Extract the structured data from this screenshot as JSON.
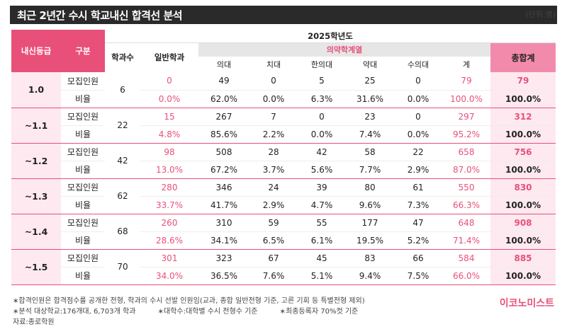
{
  "title": "최근 2년간 수시 학교내신 합격선 분석",
  "unit": "(단위:명)",
  "header": {
    "grade": "내신등급",
    "gubun": "구분",
    "year": "2025학년도",
    "dept_count": "학과수",
    "general": "일반학과",
    "medical_group": "의약학계열",
    "medical_cols": [
      "의대",
      "치대",
      "한의대",
      "약대",
      "수의대",
      "계"
    ],
    "total": "총합계"
  },
  "rows": [
    {
      "grade": "1.0",
      "dept_count": "6",
      "recruit": {
        "label": "모집인원",
        "general": "0",
        "values": [
          "49",
          "0",
          "5",
          "25",
          "0"
        ],
        "sum": "79",
        "total": "79"
      },
      "ratio": {
        "label": "비율",
        "general": "0.0%",
        "values": [
          "62.0%",
          "0.0%",
          "6.3%",
          "31.6%",
          "0.0%"
        ],
        "sum": "100.0%",
        "total": "100.0%"
      }
    },
    {
      "grade": "~1.1",
      "dept_count": "22",
      "recruit": {
        "label": "모집인원",
        "general": "15",
        "values": [
          "267",
          "7",
          "0",
          "23",
          "0"
        ],
        "sum": "297",
        "total": "312"
      },
      "ratio": {
        "label": "비율",
        "general": "4.8%",
        "values": [
          "85.6%",
          "2.2%",
          "0.0%",
          "7.4%",
          "0.0%"
        ],
        "sum": "95.2%",
        "total": "100.0%"
      }
    },
    {
      "grade": "~1.2",
      "dept_count": "42",
      "recruit": {
        "label": "모집인원",
        "general": "98",
        "values": [
          "508",
          "28",
          "42",
          "58",
          "22"
        ],
        "sum": "658",
        "total": "756"
      },
      "ratio": {
        "label": "비율",
        "general": "13.0%",
        "values": [
          "67.2%",
          "3.7%",
          "5.6%",
          "7.7%",
          "2.9%"
        ],
        "sum": "87.0%",
        "total": "100.0%"
      }
    },
    {
      "grade": "~1.3",
      "dept_count": "62",
      "recruit": {
        "label": "모집인원",
        "general": "280",
        "values": [
          "346",
          "24",
          "39",
          "80",
          "61"
        ],
        "sum": "550",
        "total": "830"
      },
      "ratio": {
        "label": "비율",
        "general": "33.7%",
        "values": [
          "41.7%",
          "2.9%",
          "4.7%",
          "9.6%",
          "7.3%"
        ],
        "sum": "66.3%",
        "total": "100.0%"
      }
    },
    {
      "grade": "~1.4",
      "dept_count": "68",
      "recruit": {
        "label": "모집인원",
        "general": "260",
        "values": [
          "310",
          "59",
          "55",
          "177",
          "47"
        ],
        "sum": "648",
        "total": "908"
      },
      "ratio": {
        "label": "비율",
        "general": "28.6%",
        "values": [
          "34.1%",
          "6.5%",
          "6.1%",
          "19.5%",
          "5.2%"
        ],
        "sum": "71.4%",
        "total": "100.0%"
      }
    },
    {
      "grade": "~1.5",
      "dept_count": "70",
      "recruit": {
        "label": "모집인원",
        "general": "301",
        "values": [
          "323",
          "67",
          "45",
          "83",
          "66"
        ],
        "sum": "584",
        "total": "885"
      },
      "ratio": {
        "label": "비율",
        "general": "34.0%",
        "values": [
          "36.5%",
          "7.6%",
          "5.1%",
          "9.4%",
          "7.5%"
        ],
        "sum": "66.0%",
        "total": "100.0%"
      }
    }
  ],
  "footnotes": {
    "note1": "합격인원은 합격점수를 공개한 전형, 학과의 수시 선발 인원임(교과, 종합 일반전형 기준, 고른 기회 등 특별전형 제외)",
    "note2": "분석 대상학교:176개대, 6,703개 학과",
    "note3": "대학수:대학별 수시 전형수 기준",
    "note4": "최종등록자 70%컷 기준",
    "source": "자료:종로학원"
  },
  "brand": "이코노미스트",
  "colors": {
    "accent": "#e8507a",
    "dark": "#2a2a2a",
    "pink_light": "#fde9ef",
    "pink_mid": "#f28bab"
  }
}
